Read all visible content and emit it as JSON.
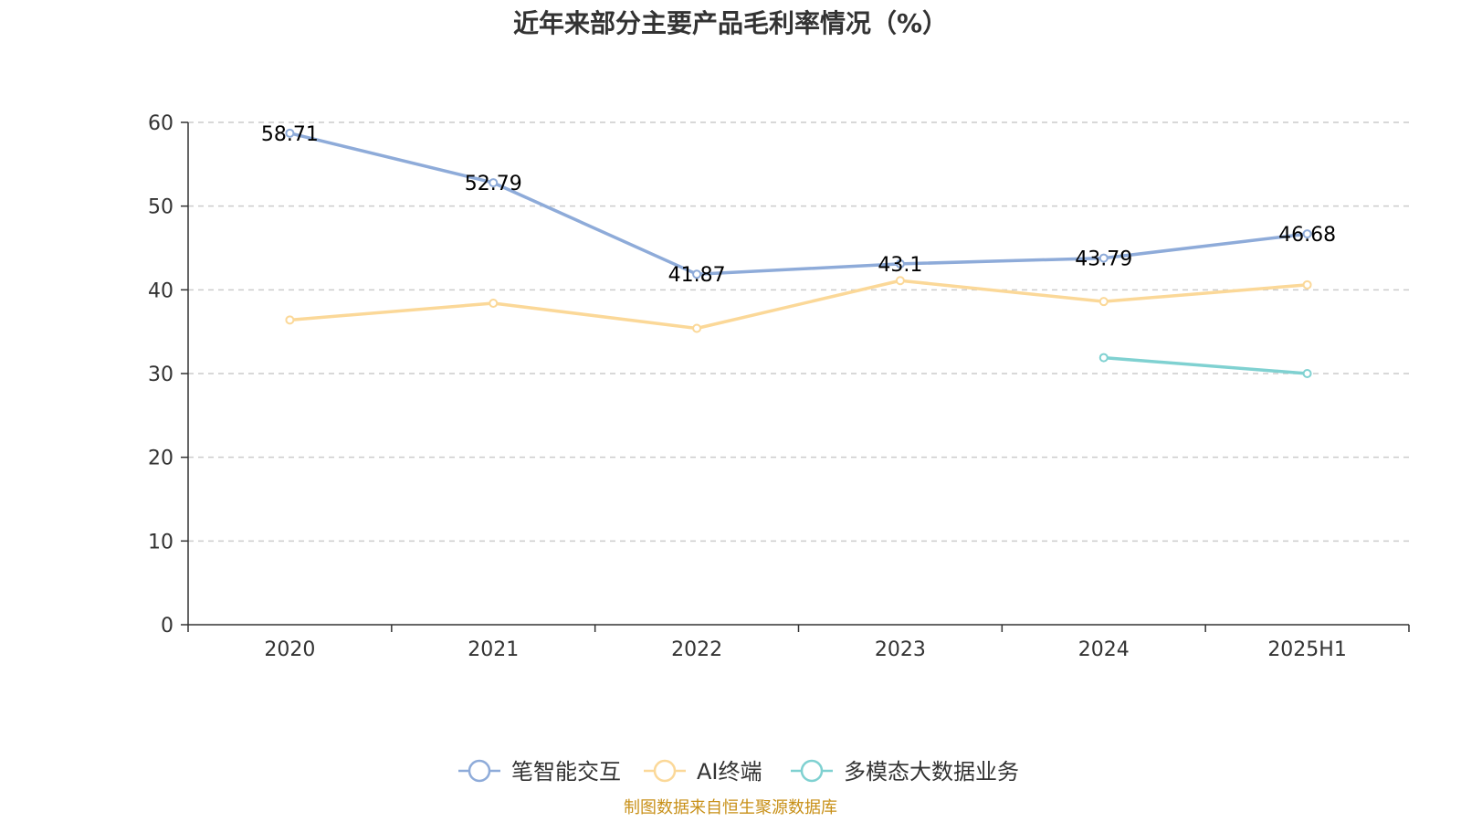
{
  "chart_data": {
    "type": "line",
    "title": "近年来部分主要产品毛利率情况（%）",
    "categories": [
      "2020",
      "2021",
      "2022",
      "2023",
      "2024",
      "2025H1"
    ],
    "ylim": [
      0,
      60
    ],
    "yticks": [
      0,
      10,
      20,
      30,
      40,
      50,
      60
    ],
    "grid": true,
    "legend_position": "bottom",
    "series": [
      {
        "name": "笔智能交互",
        "color": "#8eabd9",
        "values": [
          58.71,
          52.79,
          41.87,
          43.1,
          43.79,
          46.68
        ],
        "labels": [
          "58.71",
          "52.79",
          "41.87",
          "43.1",
          "43.79",
          "46.68"
        ]
      },
      {
        "name": "AI终端",
        "color": "#fbd898",
        "values": [
          36.4,
          38.4,
          35.4,
          41.1,
          38.6,
          40.6
        ],
        "labels": null
      },
      {
        "name": "多模态大数据业务",
        "color": "#7fd1d1",
        "values": [
          null,
          null,
          null,
          null,
          31.9,
          30.0
        ],
        "labels": null
      }
    ],
    "source": "制图数据来自恒生聚源数据库"
  }
}
